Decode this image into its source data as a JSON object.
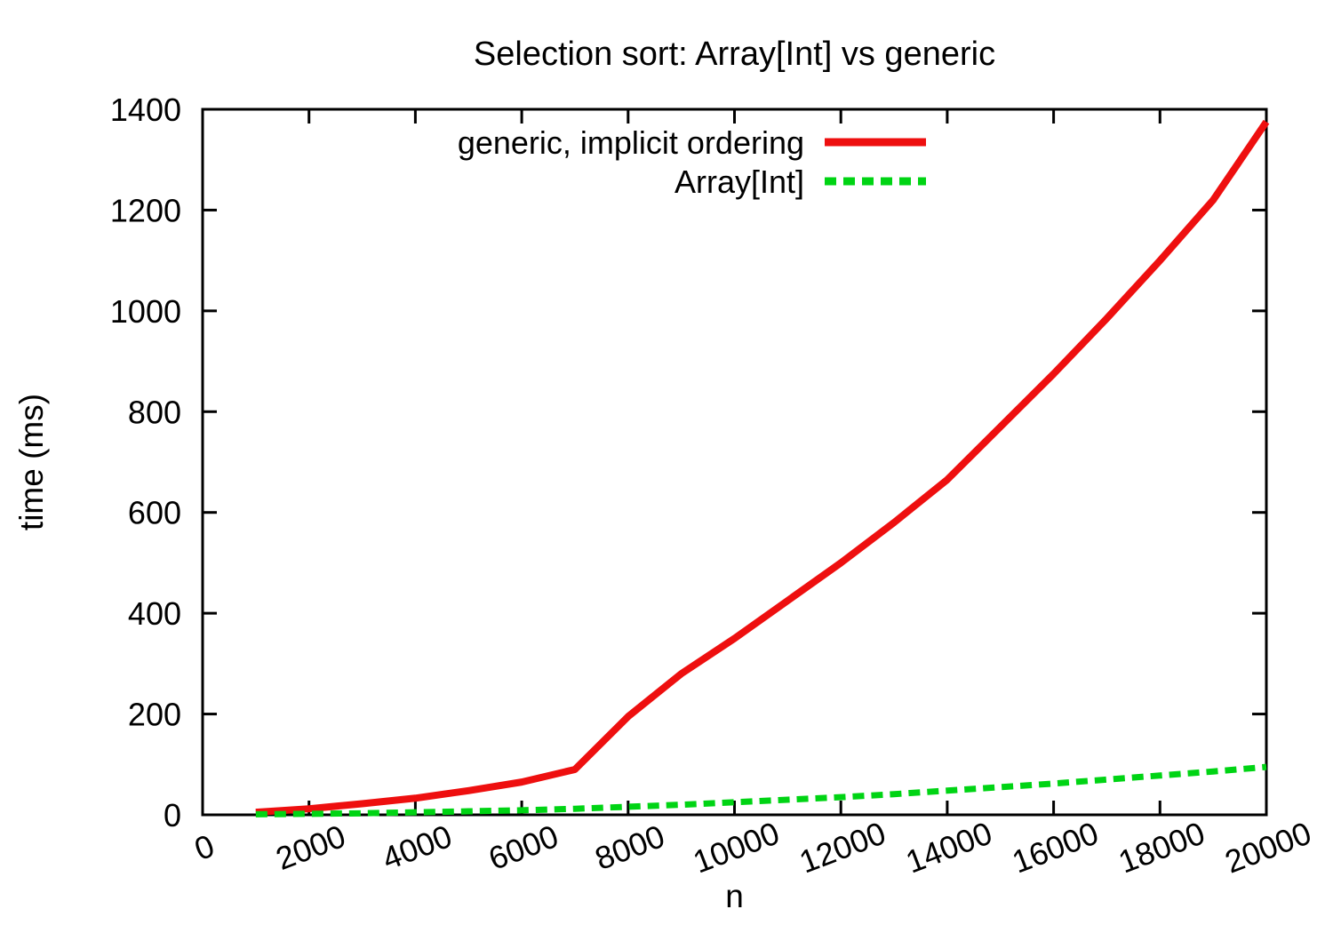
{
  "chart_data": {
    "type": "line",
    "title": "Selection sort: Array[Int] vs generic",
    "xlabel": "n",
    "ylabel": "time (ms)",
    "xlim": [
      0,
      20000
    ],
    "ylim": [
      0,
      1400
    ],
    "xticks": [
      0,
      2000,
      4000,
      6000,
      8000,
      10000,
      12000,
      14000,
      16000,
      18000,
      20000
    ],
    "yticks": [
      0,
      200,
      400,
      600,
      800,
      1000,
      1200,
      1400
    ],
    "xtick_rotation": -21,
    "grid": false,
    "border": "box-with-mirrored-ticks",
    "legend_position": "top-right-inside",
    "x": [
      1000,
      2000,
      3000,
      4000,
      5000,
      6000,
      7000,
      8000,
      9000,
      10000,
      11000,
      12000,
      13000,
      14000,
      15000,
      16000,
      17000,
      18000,
      19000,
      20000
    ],
    "series": [
      {
        "name": "generic, implicit ordering",
        "color": "#ee0f0f",
        "style": "solid",
        "values": [
          5,
          12,
          22,
          33,
          48,
          65,
          90,
          195,
          280,
          350,
          425,
          500,
          580,
          665,
          770,
          875,
          985,
          1100,
          1220,
          1375
        ]
      },
      {
        "name": "Array[Int]",
        "color": "#00d414",
        "style": "dashed",
        "values": [
          1,
          2,
          3,
          5,
          7,
          9,
          12,
          16,
          20,
          25,
          30,
          35,
          41,
          48,
          55,
          62,
          70,
          78,
          86,
          95
        ]
      }
    ]
  },
  "colors": {
    "background": "#ffffff",
    "axis": "#000000",
    "text": "#000000"
  }
}
